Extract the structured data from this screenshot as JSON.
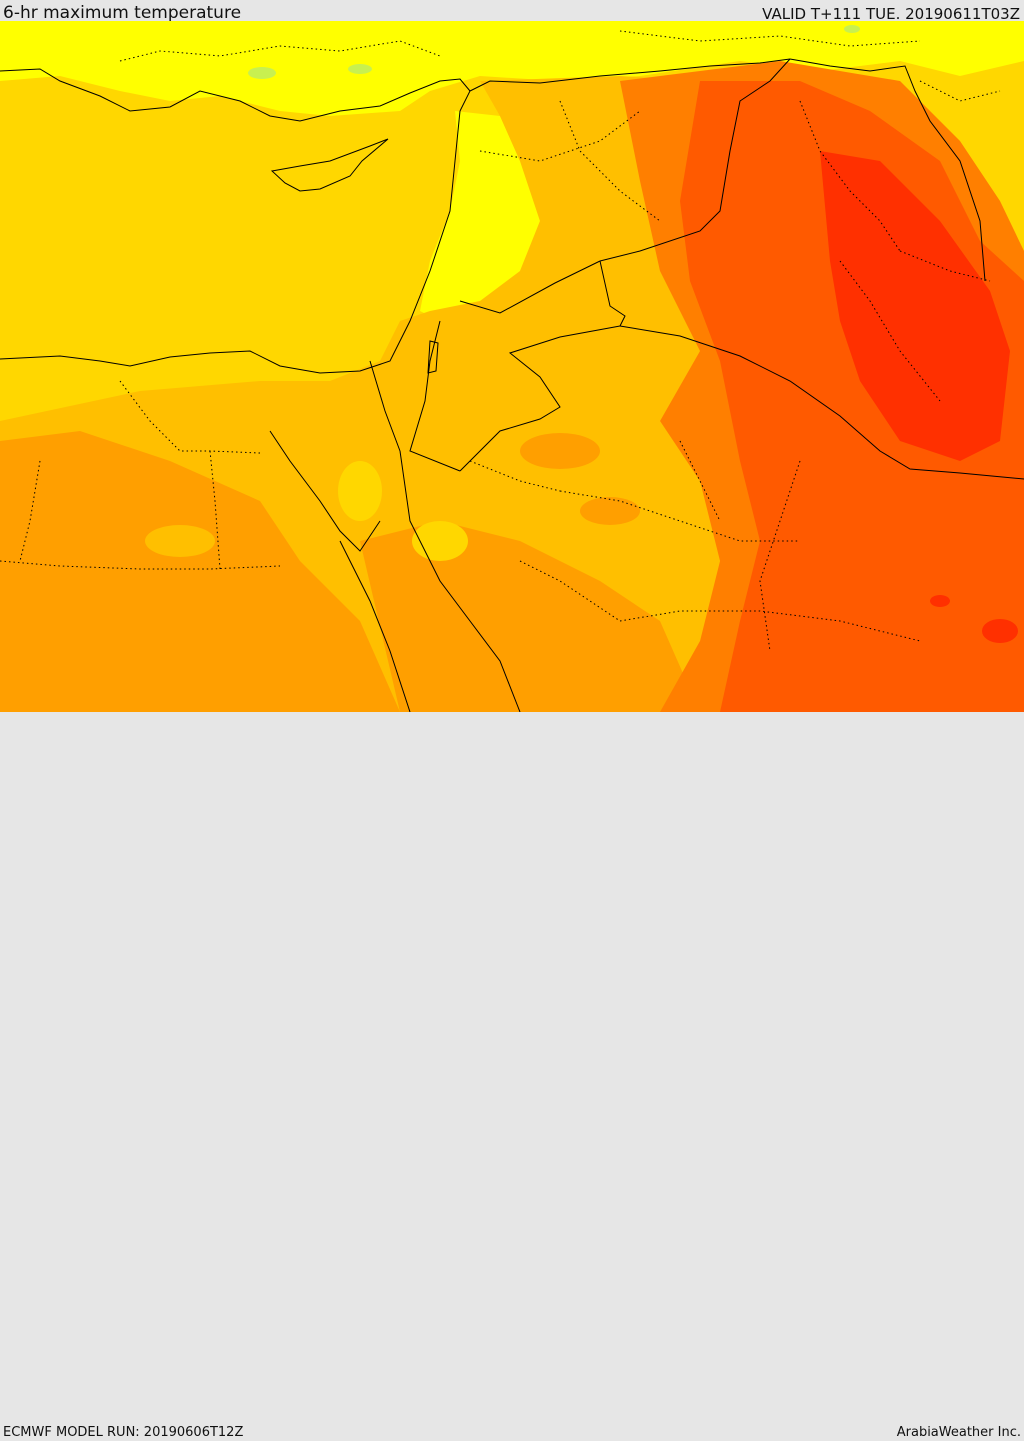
{
  "header": {
    "title": "6-hr maximum temperature",
    "valid": "VALID T+111 TUE. 20190611T03Z"
  },
  "footer": {
    "model_run": "ECMWF MODEL RUN: 20190606T12Z",
    "credit": "ArabiaWeather Inc."
  },
  "palette": {
    "bg_grey": "#e6e6e6",
    "sea_yellow": "#ffd700",
    "light_yellow": "#ffff00",
    "pale_green": "#c8f050",
    "amber": "#ffbf00",
    "orange": "#ff9f00",
    "dark_orange": "#ff7f00",
    "red_orange": "#ff5a00",
    "red": "#ff3000",
    "border": "#000000"
  }
}
